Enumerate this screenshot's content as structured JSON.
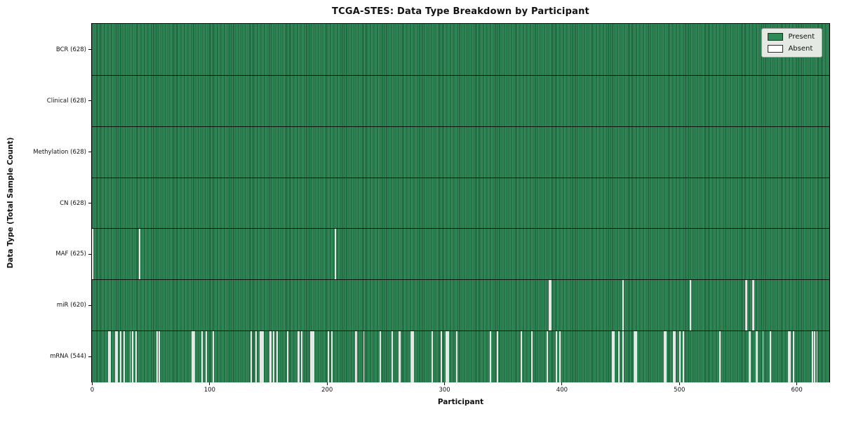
{
  "figure": {
    "title": "TCGA-STES: Data Type Breakdown by Participant",
    "xlabel": "Participant",
    "ylabel": "Data Type (Total Sample Count)"
  },
  "legend": {
    "present_label": "Present",
    "absent_label": "Absent",
    "present_color": "#2e8b57",
    "absent_color": "#ffffff"
  },
  "chart_data": {
    "type": "heatmap",
    "title": "TCGA-STES: Data Type Breakdown by Participant",
    "xlabel": "Participant",
    "ylabel": "Data Type (Total Sample Count)",
    "legend_position": "upper right",
    "grid": false,
    "n_participants": 628,
    "x_ticks": [
      0,
      100,
      200,
      300,
      400,
      500,
      600
    ],
    "xlim": [
      0,
      628
    ],
    "present_color": "#2e8b57",
    "absent_color": "#ffffff",
    "legend_entries": [
      {
        "label": "Present",
        "color": "#2e8b57"
      },
      {
        "label": "Absent",
        "color": "#ffffff"
      }
    ],
    "rows": [
      {
        "data_type": "BCR",
        "label": "BCR (628)",
        "total_samples": 628,
        "absent_participants": []
      },
      {
        "data_type": "Clinical",
        "label": "Clinical (628)",
        "total_samples": 628,
        "absent_participants": []
      },
      {
        "data_type": "Methylation",
        "label": "Methylation (628)",
        "total_samples": 628,
        "absent_participants": []
      },
      {
        "data_type": "CN",
        "label": "CN (628)",
        "total_samples": 628,
        "absent_participants": []
      },
      {
        "data_type": "MAF",
        "label": "MAF (625)",
        "total_samples": 625,
        "absent_participants": [
          0,
          40,
          207
        ]
      },
      {
        "data_type": "miR",
        "label": "miR (620)",
        "total_samples": 620,
        "absent_participants": [
          389,
          390,
          452,
          509,
          556,
          557,
          562,
          563
        ]
      },
      {
        "data_type": "mRNA",
        "label": "mRNA (544)",
        "total_samples": 544,
        "absent_participants": [
          14,
          15,
          20,
          21,
          24,
          27,
          32,
          34,
          37,
          55,
          57,
          85,
          86,
          87,
          93,
          97,
          103,
          135,
          139,
          143,
          144,
          145,
          151,
          152,
          154,
          157,
          166,
          175,
          176,
          178,
          186,
          187,
          188,
          201,
          204,
          224,
          225,
          231,
          245,
          255,
          261,
          262,
          271,
          272,
          273,
          289,
          297,
          301,
          302,
          303,
          310,
          339,
          345,
          365,
          374,
          387,
          395,
          398,
          443,
          444,
          448,
          452,
          461,
          462,
          463,
          487,
          488,
          495,
          496,
          500,
          503,
          534,
          559,
          560,
          565,
          566,
          571,
          577,
          593,
          594,
          597,
          613,
          615,
          617
        ]
      }
    ]
  }
}
